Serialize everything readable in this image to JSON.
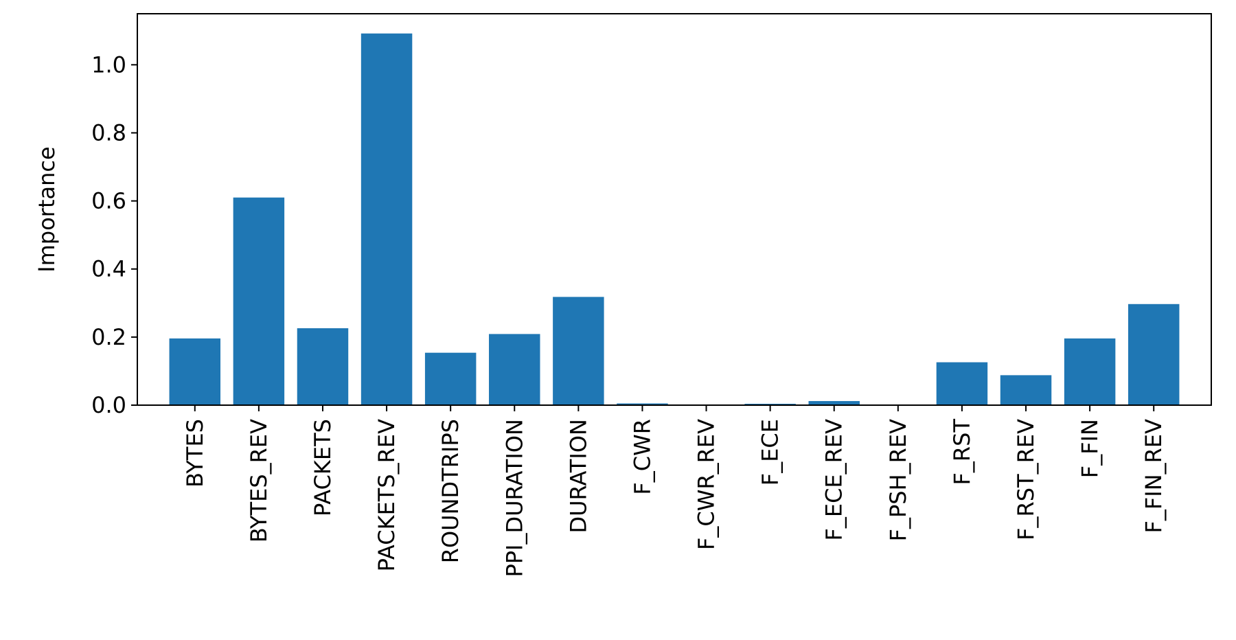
{
  "chart_data": {
    "type": "bar",
    "title": "",
    "xlabel": "",
    "ylabel": "Importance",
    "categories": [
      "BYTES",
      "BYTES_REV",
      "PACKETS",
      "PACKETS_REV",
      "ROUNDTRIPS",
      "PPI_DURATION",
      "DURATION",
      "F_CWR",
      "F_CWR_REV",
      "F_ECE",
      "F_ECE_REV",
      "F_PSH_REV",
      "F_RST",
      "F_RST_REV",
      "F_FIN",
      "F_FIN_REV"
    ],
    "values": [
      0.196,
      0.61,
      0.226,
      1.092,
      0.154,
      0.209,
      0.318,
      0.005,
      0.0,
      0.004,
      0.012,
      0.0,
      0.126,
      0.088,
      0.196,
      0.297
    ],
    "ylim": [
      0,
      1.15
    ],
    "yticks": [
      0.0,
      0.2,
      0.4,
      0.6,
      0.8,
      1.0
    ],
    "ytick_labels": [
      "0.0",
      "0.2",
      "0.4",
      "0.6",
      "0.8",
      "1.0"
    ],
    "bar_color": "#1f77b4",
    "grid": false,
    "legend": "none"
  }
}
